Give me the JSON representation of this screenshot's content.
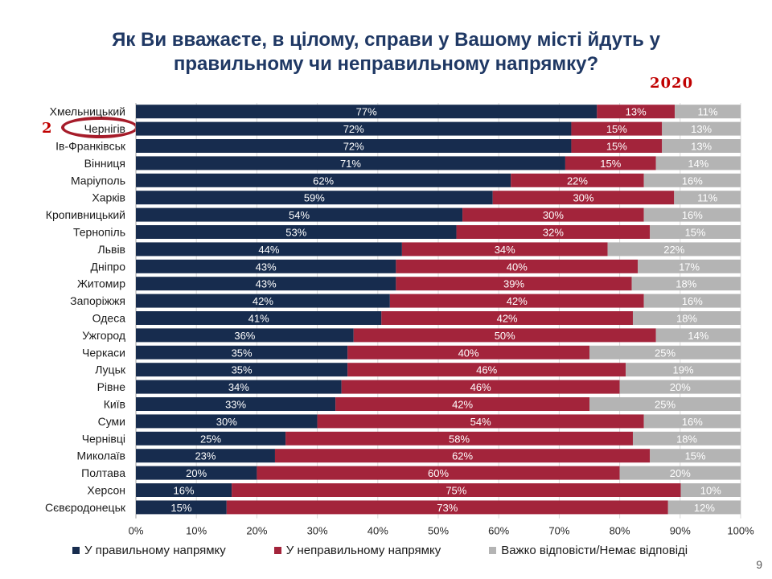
{
  "title": "Як Ви вважаєте, в цілому, справи у Вашому місті йдуть у правильному чи неправильному напрямку?",
  "year_badge": "2020",
  "highlight": {
    "rank": "2",
    "city": "Чернігів"
  },
  "page_number": "9",
  "colors": {
    "right": "#172c4e",
    "wrong": "#a3243b",
    "hard": "#b4b4b4"
  },
  "legend": [
    {
      "label": "У правильному напрямку",
      "color": "#172c4e"
    },
    {
      "label": "У неправильному напрямку",
      "color": "#a3243b"
    },
    {
      "label": "Важко відповісти/Немає відповіді",
      "color": "#b4b4b4"
    }
  ],
  "chart_data": {
    "type": "bar",
    "orientation": "horizontal",
    "stacked": true,
    "categories": [
      "Хмельницький",
      "Чернігів",
      "Ів-Франківськ",
      "Вінниця",
      "Маріуполь",
      "Харків",
      "Кропивницький",
      "Тернопіль",
      "Львів",
      "Дніпро",
      "Житомир",
      "Запоріжжя",
      "Одеса",
      "Ужгород",
      "Черкаси",
      "Луцьк",
      "Рівне",
      "Київ",
      "Суми",
      "Чернівці",
      "Миколаїв",
      "Полтава",
      "Херсон",
      "Сєвєродонецьк"
    ],
    "series": [
      {
        "name": "У правильному напрямку",
        "values": [
          77,
          72,
          72,
          71,
          62,
          59,
          54,
          53,
          44,
          43,
          43,
          42,
          41,
          36,
          35,
          35,
          34,
          33,
          30,
          25,
          23,
          20,
          16,
          15
        ]
      },
      {
        "name": "У неправильному напрямку",
        "values": [
          13,
          15,
          15,
          15,
          22,
          30,
          30,
          32,
          34,
          40,
          39,
          42,
          42,
          50,
          40,
          46,
          46,
          42,
          54,
          58,
          62,
          60,
          75,
          73
        ]
      },
      {
        "name": "Важко відповісти/Немає відповіді",
        "values": [
          11,
          13,
          13,
          14,
          16,
          11,
          16,
          15,
          22,
          17,
          18,
          16,
          18,
          14,
          25,
          19,
          20,
          25,
          16,
          18,
          15,
          20,
          10,
          12
        ]
      }
    ],
    "xlim": [
      0,
      100
    ],
    "xticks": [
      "0%",
      "10%",
      "20%",
      "30%",
      "40%",
      "50%",
      "60%",
      "70%",
      "80%",
      "90%",
      "100%"
    ],
    "grid": true,
    "legend_position": "bottom"
  }
}
